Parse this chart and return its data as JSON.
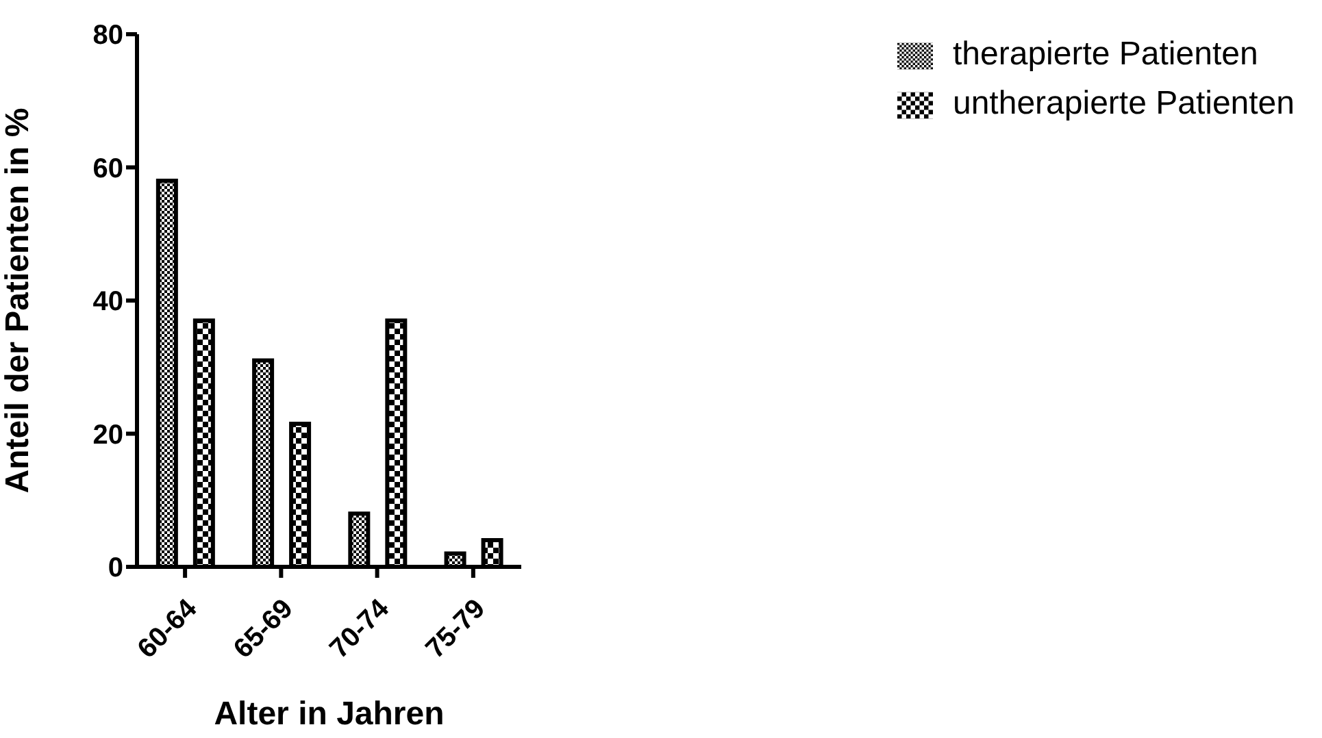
{
  "chart_data": {
    "type": "bar",
    "xlabel": "Alter in Jahren",
    "ylabel": "Anteil der Patienten in %",
    "categories": [
      "60-64",
      "65-69",
      "70-74",
      "75-79"
    ],
    "series": [
      {
        "name": "therapierte Patienten",
        "color": "#000000",
        "values": [
          58,
          31,
          8,
          2
        ]
      },
      {
        "name": "untherapierte Patienten",
        "color": "#000000",
        "values": [
          37,
          21.5,
          37,
          4
        ]
      }
    ],
    "ylim": [
      0,
      80
    ],
    "yticks": [
      0,
      20,
      40,
      60,
      80
    ],
    "legend": "top right"
  }
}
